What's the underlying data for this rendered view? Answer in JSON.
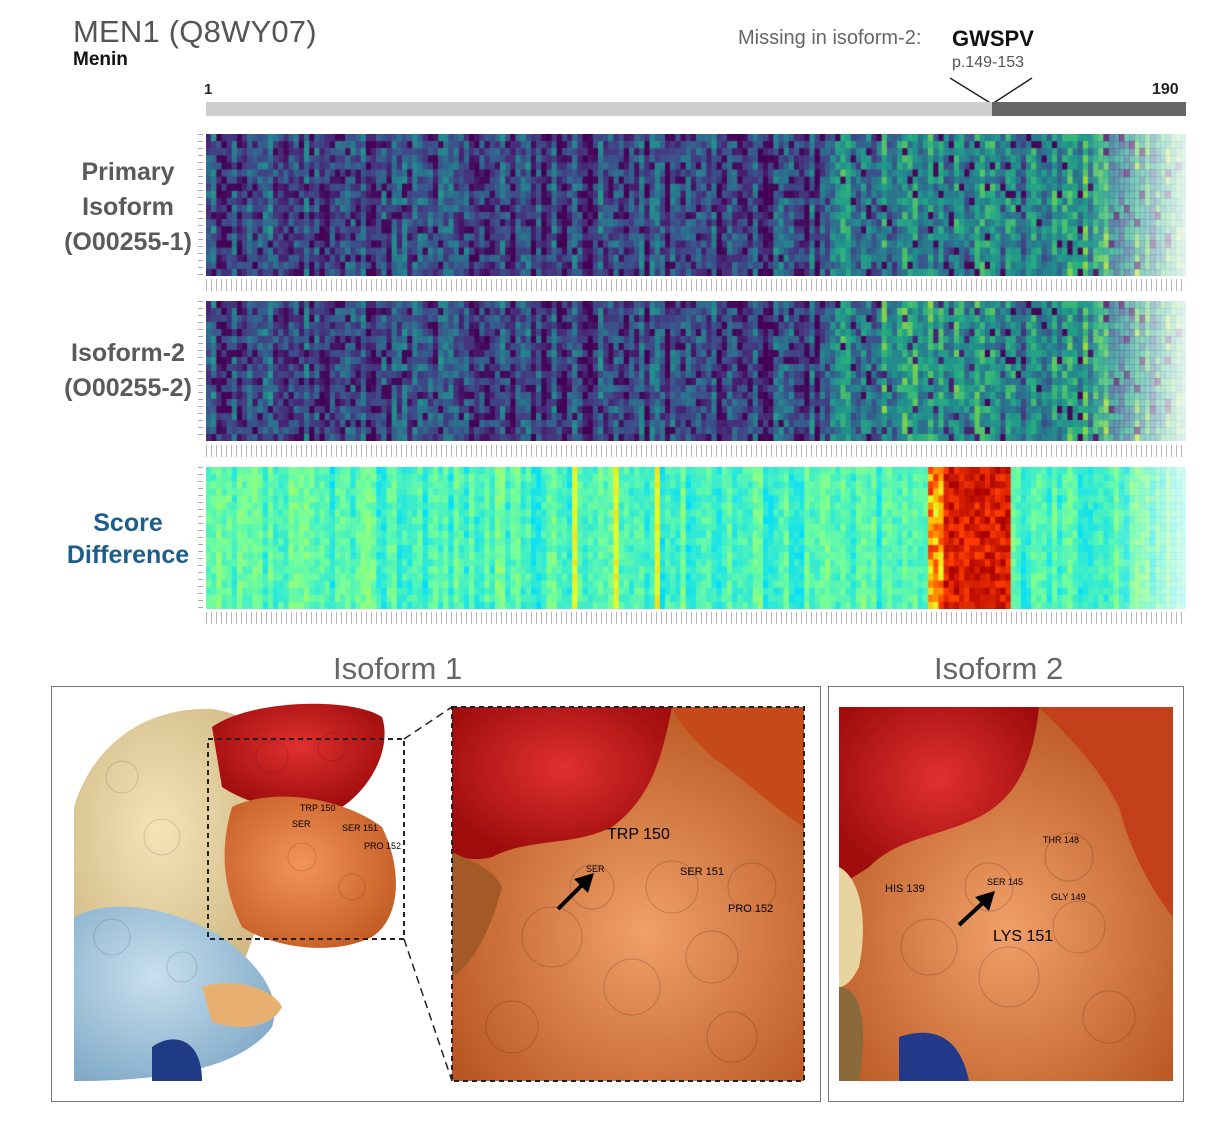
{
  "header": {
    "gene_title": "MEN1 (Q8WY07)",
    "protein_name": "Menin",
    "missing_label": "Missing in isoform-2:",
    "missing_sequence": "GWSPV",
    "missing_position": "p.149-153",
    "length_start": "1",
    "length_end": "190"
  },
  "rows": {
    "primary_line1": "Primary",
    "primary_line2": "Isoform",
    "primary_line3": "(O00255-1)",
    "iso2_line1": "Isoform-2",
    "iso2_line2": "(O00255-2)",
    "score_line1": "Score",
    "score_line2": "Difference"
  },
  "structures": {
    "iso1_title": "Isoform 1",
    "iso2_title": "Isoform 2",
    "iso1_overview_labels": {
      "trp150": "TRP 150",
      "ser": "SER",
      "ser151": "SER 151",
      "pro152": "PRO 152"
    },
    "iso1_zoom_labels": {
      "trp150": "TRP 150",
      "ser": "SER",
      "ser151": "SER 151",
      "pro152": "PRO 152"
    },
    "iso2_labels": {
      "his139": "HIS 139",
      "ser145": "SER 145",
      "thr148": "THR 148",
      "gly149": "GLY 149",
      "lys151": "LYS 151"
    }
  },
  "colors": {
    "heatmap_low": "#440154",
    "heatmap_mid": "#21918c",
    "heatmap_high": "#fde725",
    "diff_high": "#c00000",
    "surface_red": "#c81818",
    "surface_orange": "#e0783a",
    "surface_tan": "#e8d4a0",
    "surface_blue": "#9cc8e0",
    "label_blue": "#1d5d8a"
  }
}
